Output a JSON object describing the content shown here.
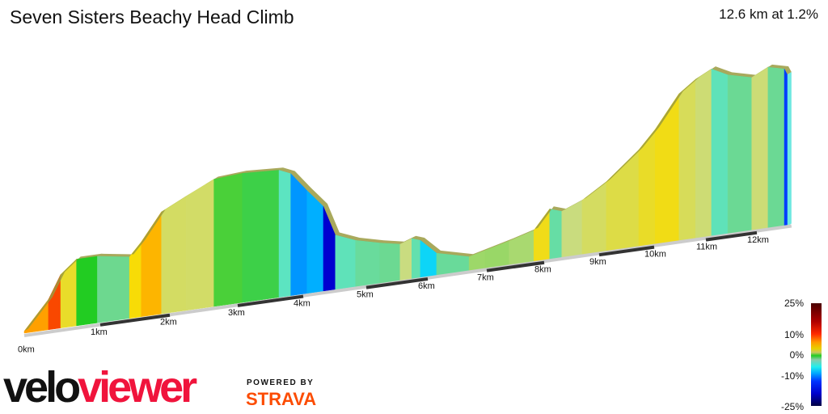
{
  "header": {
    "title": "Seven Sisters Beachy Head Climb",
    "summary": "12.6 km at 1.2%"
  },
  "legend": {
    "labels": [
      "25%",
      "10%",
      "0%",
      "-10%",
      "-25%"
    ]
  },
  "branding": {
    "logo_part1": "velo",
    "logo_part2": "viewer",
    "powered_by": "POWERED BY",
    "strava": "STRAVA"
  },
  "colors": {
    "ridge": "#9a9a40",
    "velo": "#111111",
    "viewer": "#f0143c",
    "strava": "#fc4c02"
  },
  "chart_data": {
    "type": "area",
    "title": "Seven Sisters Beachy Head Climb",
    "xlabel": "",
    "ylabel": "",
    "x_unit": "km",
    "x_tick_labels": [
      "0km",
      "1km",
      "2km",
      "3km",
      "4km",
      "5km",
      "6km",
      "7km",
      "8km",
      "9km",
      "10km",
      "11km",
      "12km"
    ],
    "color_by": "gradient %",
    "color_range": [
      -25,
      25
    ],
    "distance_km": [
      0.0,
      0.28,
      0.45,
      0.67,
      0.96,
      1.42,
      1.59,
      1.88,
      2.24,
      2.65,
      3.07,
      3.63,
      3.81,
      4.06,
      4.32,
      4.51,
      4.83,
      5.22,
      5.55,
      5.74,
      5.88,
      6.15,
      6.7,
      6.97,
      7.39,
      7.82,
      8.1,
      8.32,
      8.69,
      9.13,
      9.72,
      10.02,
      10.48,
      10.8,
      11.11,
      11.43,
      11.9,
      12.22,
      12.54,
      12.6
    ],
    "elevation_m": [
      2,
      30,
      53,
      66,
      66,
      61,
      74,
      101,
      113,
      126,
      128,
      126,
      121,
      102,
      84,
      54,
      46,
      40,
      36,
      40,
      37,
      22,
      14,
      18,
      24,
      31,
      50,
      46,
      54,
      69,
      96,
      114,
      146,
      158,
      166,
      158,
      152,
      160,
      156,
      150
    ]
  }
}
